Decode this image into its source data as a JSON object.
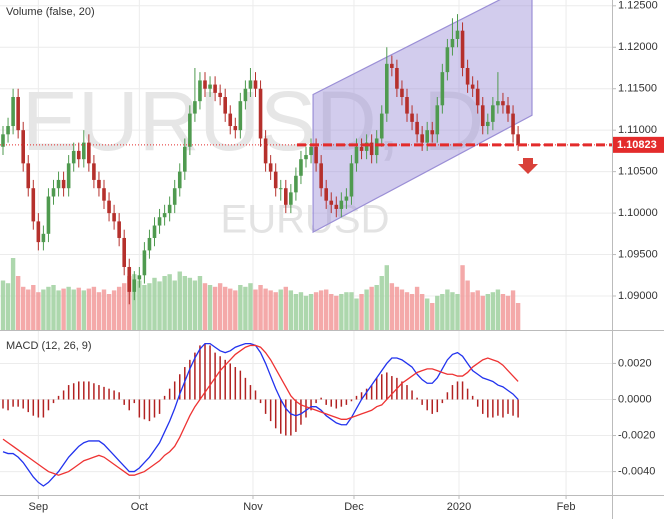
{
  "chart_data": {
    "type": "candlestick",
    "watermark": "EURUSD, D",
    "symbol": "EURUSD",
    "volume_title": "Volume (false, 20)",
    "up_color": "#4f9a4f",
    "down_color": "#b5302c",
    "open": [
      1.108,
      1.1095,
      1.1105,
      1.114,
      1.11,
      1.106,
      1.103,
      1.099,
      1.0965,
      1.0975,
      1.102,
      1.103,
      1.104,
      1.103,
      1.106,
      1.1075,
      1.1065,
      1.1085,
      1.106,
      1.104,
      1.103,
      1.1015,
      1.1,
      1.099,
      1.097,
      1.0935,
      1.0905,
      1.092,
      1.0925,
      1.0955,
      1.097,
      1.0985,
      1.0995,
      1.1,
      1.101,
      1.103,
      1.105,
      1.108,
      1.112,
      1.1135,
      1.116,
      1.115,
      1.1155,
      1.1145,
      1.114,
      1.112,
      1.1105,
      1.11,
      1.1135,
      1.115,
      1.116,
      1.115,
      1.109,
      1.106,
      1.105,
      1.103,
      1.103,
      1.101,
      1.1025,
      1.1045,
      1.1065,
      1.107,
      1.108,
      1.106,
      1.103,
      1.1015,
      1.101,
      1.1005,
      1.1015,
      1.102,
      1.106,
      1.108,
      1.1075,
      1.1085,
      1.107,
      1.109,
      1.112,
      1.118,
      1.1175,
      1.115,
      1.114,
      1.112,
      1.111,
      1.1095,
      1.1085,
      1.11,
      1.1095,
      1.113,
      1.117,
      1.12,
      1.121,
      1.122,
      1.1175,
      1.1155,
      1.115,
      1.113,
      1.1105,
      1.111,
      1.113,
      1.1135,
      1.113,
      1.112,
      1.1095
    ],
    "high": [
      1.1105,
      1.1115,
      1.115,
      1.115,
      1.111,
      1.107,
      1.104,
      1.1,
      1.0985,
      1.103,
      1.104,
      1.105,
      1.105,
      1.107,
      1.1085,
      1.1085,
      1.11,
      1.1095,
      1.107,
      1.105,
      1.104,
      1.1025,
      1.101,
      1.1,
      1.098,
      1.0945,
      1.093,
      1.0935,
      1.0965,
      1.098,
      1.0995,
      1.1005,
      1.101,
      1.102,
      1.104,
      1.106,
      1.109,
      1.113,
      1.1175,
      1.117,
      1.117,
      1.1165,
      1.1165,
      1.1155,
      1.115,
      1.113,
      1.1115,
      1.1145,
      1.116,
      1.1175,
      1.117,
      1.116,
      1.11,
      1.107,
      1.106,
      1.104,
      1.104,
      1.1035,
      1.1055,
      1.1075,
      1.108,
      1.109,
      1.109,
      1.107,
      1.104,
      1.1025,
      1.102,
      1.1025,
      1.103,
      1.107,
      1.109,
      1.109,
      1.1095,
      1.1095,
      1.11,
      1.113,
      1.12,
      1.119,
      1.1185,
      1.116,
      1.115,
      1.113,
      1.112,
      1.1105,
      1.111,
      1.111,
      1.114,
      1.118,
      1.121,
      1.1235,
      1.124,
      1.123,
      1.1185,
      1.1165,
      1.116,
      1.114,
      1.112,
      1.114,
      1.117,
      1.1145,
      1.114,
      1.113,
      1.1105
    ],
    "low": [
      1.107,
      1.1085,
      1.1095,
      1.109,
      1.105,
      1.102,
      1.098,
      1.0955,
      1.0955,
      1.0965,
      1.101,
      1.102,
      1.102,
      1.102,
      1.105,
      1.1055,
      1.1055,
      1.105,
      1.103,
      1.102,
      1.1005,
      1.099,
      1.098,
      1.096,
      1.0925,
      1.089,
      1.0895,
      1.091,
      1.0915,
      1.0945,
      1.096,
      1.0975,
      1.0985,
      1.099,
      1.1,
      1.102,
      1.104,
      1.107,
      1.111,
      1.1125,
      1.114,
      1.114,
      1.1135,
      1.113,
      1.111,
      1.1095,
      1.109,
      1.109,
      1.1125,
      1.114,
      1.114,
      1.108,
      1.105,
      1.104,
      1.102,
      1.1015,
      1.1,
      1.1,
      1.1015,
      1.1035,
      1.1055,
      1.106,
      1.105,
      1.102,
      1.1005,
      1.1,
      1.0995,
      1.0995,
      1.1005,
      1.101,
      1.105,
      1.1065,
      1.1065,
      1.106,
      1.106,
      1.108,
      1.111,
      1.1165,
      1.114,
      1.113,
      1.111,
      1.11,
      1.1085,
      1.1075,
      1.1075,
      1.1085,
      1.1085,
      1.112,
      1.116,
      1.119,
      1.12,
      1.1165,
      1.1145,
      1.114,
      1.112,
      1.1095,
      1.1095,
      1.11,
      1.112,
      1.112,
      1.111,
      1.1085,
      1.1075
    ],
    "close": [
      1.1095,
      1.1105,
      1.114,
      1.11,
      1.106,
      1.103,
      1.099,
      1.0965,
      1.0975,
      1.102,
      1.103,
      1.104,
      1.103,
      1.106,
      1.1075,
      1.1065,
      1.1085,
      1.106,
      1.104,
      1.103,
      1.1015,
      1.1,
      1.099,
      1.097,
      1.0935,
      1.0905,
      1.092,
      1.0925,
      1.0955,
      1.097,
      1.0985,
      1.0995,
      1.1,
      1.101,
      1.103,
      1.105,
      1.108,
      1.112,
      1.1135,
      1.116,
      1.115,
      1.1155,
      1.1145,
      1.114,
      1.112,
      1.1105,
      1.11,
      1.1135,
      1.115,
      1.116,
      1.115,
      1.109,
      1.106,
      1.105,
      1.103,
      1.103,
      1.101,
      1.1025,
      1.1045,
      1.1065,
      1.107,
      1.108,
      1.106,
      1.103,
      1.1015,
      1.101,
      1.1005,
      1.1015,
      1.102,
      1.106,
      1.108,
      1.1075,
      1.1085,
      1.107,
      1.109,
      1.112,
      1.118,
      1.1175,
      1.115,
      1.114,
      1.112,
      1.111,
      1.1095,
      1.1085,
      1.11,
      1.1095,
      1.113,
      1.117,
      1.12,
      1.121,
      1.122,
      1.1175,
      1.1155,
      1.115,
      1.113,
      1.1105,
      1.111,
      1.113,
      1.1135,
      1.113,
      1.112,
      1.1095,
      1.1082
    ],
    "volume": {
      "up_color": "#9fd09f",
      "down_color": "#f29a9a",
      "values": [
        55,
        52,
        80,
        60,
        48,
        45,
        50,
        42,
        45,
        48,
        50,
        44,
        46,
        48,
        45,
        47,
        44,
        46,
        48,
        42,
        45,
        40,
        44,
        48,
        52,
        60,
        62,
        55,
        50,
        52,
        58,
        54,
        60,
        62,
        55,
        65,
        60,
        58,
        55,
        60,
        52,
        50,
        48,
        52,
        48,
        46,
        44,
        50,
        48,
        52,
        45,
        50,
        46,
        44,
        42,
        45,
        48,
        44,
        40,
        42,
        38,
        40,
        42,
        44,
        45,
        40,
        38,
        40,
        42,
        42,
        35,
        40,
        45,
        48,
        50,
        60,
        72,
        52,
        48,
        45,
        42,
        40,
        48,
        40,
        35,
        30,
        38,
        40,
        45,
        42,
        40,
        72,
        55,
        42,
        44,
        38,
        40,
        42,
        45,
        40,
        38,
        44,
        30
      ]
    },
    "ylim": [
      1.0859,
      1.1257
    ],
    "yticks": [
      {
        "value": 1.09,
        "label": "1.09000"
      },
      {
        "value": 1.095,
        "label": "1.09500"
      },
      {
        "value": 1.1,
        "label": "1.10000"
      },
      {
        "value": 1.105,
        "label": "1.10500"
      },
      {
        "value": 1.11,
        "label": "1.11000"
      },
      {
        "value": 1.115,
        "label": "1.11500"
      },
      {
        "value": 1.12,
        "label": "1.12000"
      },
      {
        "value": 1.125,
        "label": "1.12500"
      }
    ],
    "xticks": [
      {
        "value": 7,
        "label": "Sep"
      },
      {
        "value": 27,
        "label": "Oct"
      },
      {
        "value": 49.5,
        "label": "Nov"
      },
      {
        "value": 69.5,
        "label": "Dec"
      },
      {
        "value": 90.3,
        "label": "2020"
      },
      {
        "value": 111.5,
        "label": "Feb"
      }
    ],
    "grid": true,
    "last_price": {
      "value": 1.10823,
      "label": "1.10823",
      "color": "#e32b2b"
    },
    "channel": {
      "color": "#9b8fd6",
      "x": [
        61.4,
        104.75
      ],
      "upper": [
        1.1143,
        1.1277
      ],
      "lower": [
        1.0977,
        1.1118
      ]
    },
    "macd": {
      "title": "MACD (12, 26, 9)",
      "ylim": [
        -0.0053,
        0.0038
      ],
      "yticks": [
        {
          "value": 0.002,
          "label": "0.0020"
        },
        {
          "value": 0,
          "label": "0.0000"
        },
        {
          "value": -0.002,
          "label": "-0.0020"
        },
        {
          "value": -0.004,
          "label": "-0.0040"
        }
      ],
      "macd_line": {
        "color": "#2233ee",
        "values": [
          -0.0029,
          -0.003,
          -0.003,
          -0.0032,
          -0.0035,
          -0.0039,
          -0.0043,
          -0.0046,
          -0.0048,
          -0.0046,
          -0.0043,
          -0.004,
          -0.0036,
          -0.0032,
          -0.0029,
          -0.0026,
          -0.0024,
          -0.0023,
          -0.0023,
          -0.0023,
          -0.0025,
          -0.0028,
          -0.0031,
          -0.0034,
          -0.0037,
          -0.004,
          -0.004,
          -0.0038,
          -0.0035,
          -0.0032,
          -0.0028,
          -0.0024,
          -0.0018,
          -0.0012,
          -0.0005,
          0.0003,
          0.001,
          0.0017,
          0.0023,
          0.0028,
          0.0031,
          0.0031,
          0.0029,
          0.0027,
          0.0026,
          0.0027,
          0.0029,
          0.003,
          0.0031,
          0.0031,
          0.003,
          0.0026,
          0.002,
          0.0013,
          0.0006,
          0.0,
          -0.0005,
          -0.0008,
          -0.0009,
          -0.0008,
          -0.0006,
          -0.0004,
          -0.0004,
          -0.0006,
          -0.0009,
          -0.0011,
          -0.0013,
          -0.0014,
          -0.0014,
          -0.001,
          -0.0005,
          0.0,
          0.0004,
          0.0008,
          0.0012,
          0.0016,
          0.002,
          0.0023,
          0.0023,
          0.0022,
          0.002,
          0.0018,
          0.0014,
          0.0011,
          0.0009,
          0.0009,
          0.0012,
          0.0017,
          0.0022,
          0.0025,
          0.0026,
          0.0024,
          0.002,
          0.0016,
          0.0014,
          0.0012,
          0.0011,
          0.001,
          0.0008,
          0.0007,
          0.0005,
          0.0003,
          0.0
        ]
      },
      "signal_line": {
        "color": "#ee3333",
        "values": [
          -0.0022,
          -0.0024,
          -0.0026,
          -0.0028,
          -0.003,
          -0.0032,
          -0.0034,
          -0.0036,
          -0.0038,
          -0.004,
          -0.0041,
          -0.0042,
          -0.0041,
          -0.004,
          -0.0038,
          -0.0036,
          -0.0034,
          -0.0033,
          -0.0032,
          -0.0031,
          -0.0032,
          -0.0034,
          -0.0036,
          -0.0038,
          -0.004,
          -0.0042,
          -0.0042,
          -0.0041,
          -0.004,
          -0.0038,
          -0.0036,
          -0.0034,
          -0.0031,
          -0.0029,
          -0.0026,
          -0.0021,
          -0.0015,
          -0.0009,
          -0.0004,
          0.0,
          0.0004,
          0.0008,
          0.0012,
          0.0016,
          0.0019,
          0.0022,
          0.0025,
          0.0027,
          0.0029,
          0.003,
          0.003,
          0.0029,
          0.0026,
          0.0022,
          0.0017,
          0.0012,
          0.0007,
          0.0002,
          -0.0001,
          -0.0003,
          -0.0004,
          -0.0005,
          -0.0006,
          -0.0007,
          -0.0008,
          -0.0009,
          -0.001,
          -0.0011,
          -0.0011,
          -0.001,
          -0.0009,
          -0.0008,
          -0.0007,
          -0.0006,
          -0.0004,
          -0.0003,
          0.0,
          0.0003,
          0.0006,
          0.0009,
          0.0011,
          0.0013,
          0.0015,
          0.0016,
          0.0017,
          0.0017,
          0.0016,
          0.0015,
          0.0014,
          0.0014,
          0.0013,
          0.0013,
          0.0015,
          0.0018,
          0.002,
          0.0022,
          0.0023,
          0.0022,
          0.0021,
          0.0019,
          0.0016,
          0.0013,
          0.001
        ]
      },
      "histogram": {
        "color": "#b22222",
        "values": [
          -0.0005,
          -0.0006,
          -0.0004,
          -0.0004,
          -0.0005,
          -0.0007,
          -0.0009,
          -0.001,
          -0.001,
          -0.0006,
          -0.0002,
          0.0002,
          0.0005,
          0.0008,
          0.0009,
          0.001,
          0.001,
          0.001,
          0.0009,
          0.0008,
          0.0007,
          0.0006,
          0.0005,
          0.0004,
          -0.0003,
          -0.0006,
          -0.0002,
          -0.001,
          -0.0011,
          -0.0012,
          -0.001,
          -0.0008,
          0.0002,
          0.0006,
          0.001,
          0.0014,
          0.0018,
          0.0022,
          0.0026,
          0.003,
          0.0031,
          0.003,
          0.0026,
          0.0024,
          0.0022,
          0.002,
          0.0018,
          0.0016,
          0.0012,
          0.0008,
          0.0005,
          -0.0002,
          -0.0008,
          -0.0012,
          -0.0016,
          -0.0019,
          -0.002,
          -0.002,
          -0.0018,
          -0.0014,
          -0.001,
          -0.0006,
          -0.0002,
          0.0001,
          -0.0003,
          -0.0004,
          -0.0005,
          -0.0004,
          -0.0003,
          -0.0001,
          0.0002,
          0.0004,
          0.0006,
          0.0008,
          0.0012,
          0.0014,
          0.0015,
          0.0013,
          0.0012,
          0.001,
          0.0008,
          0.0005,
          0.0001,
          -0.0003,
          -0.0006,
          -0.0008,
          -0.0007,
          -0.0002,
          0.0004,
          0.0008,
          0.001,
          0.001,
          0.0006,
          0.0002,
          -0.0004,
          -0.0008,
          -0.001,
          -0.001,
          -0.0009,
          -0.001,
          -0.0008,
          -0.0009,
          -0.001
        ]
      }
    }
  }
}
